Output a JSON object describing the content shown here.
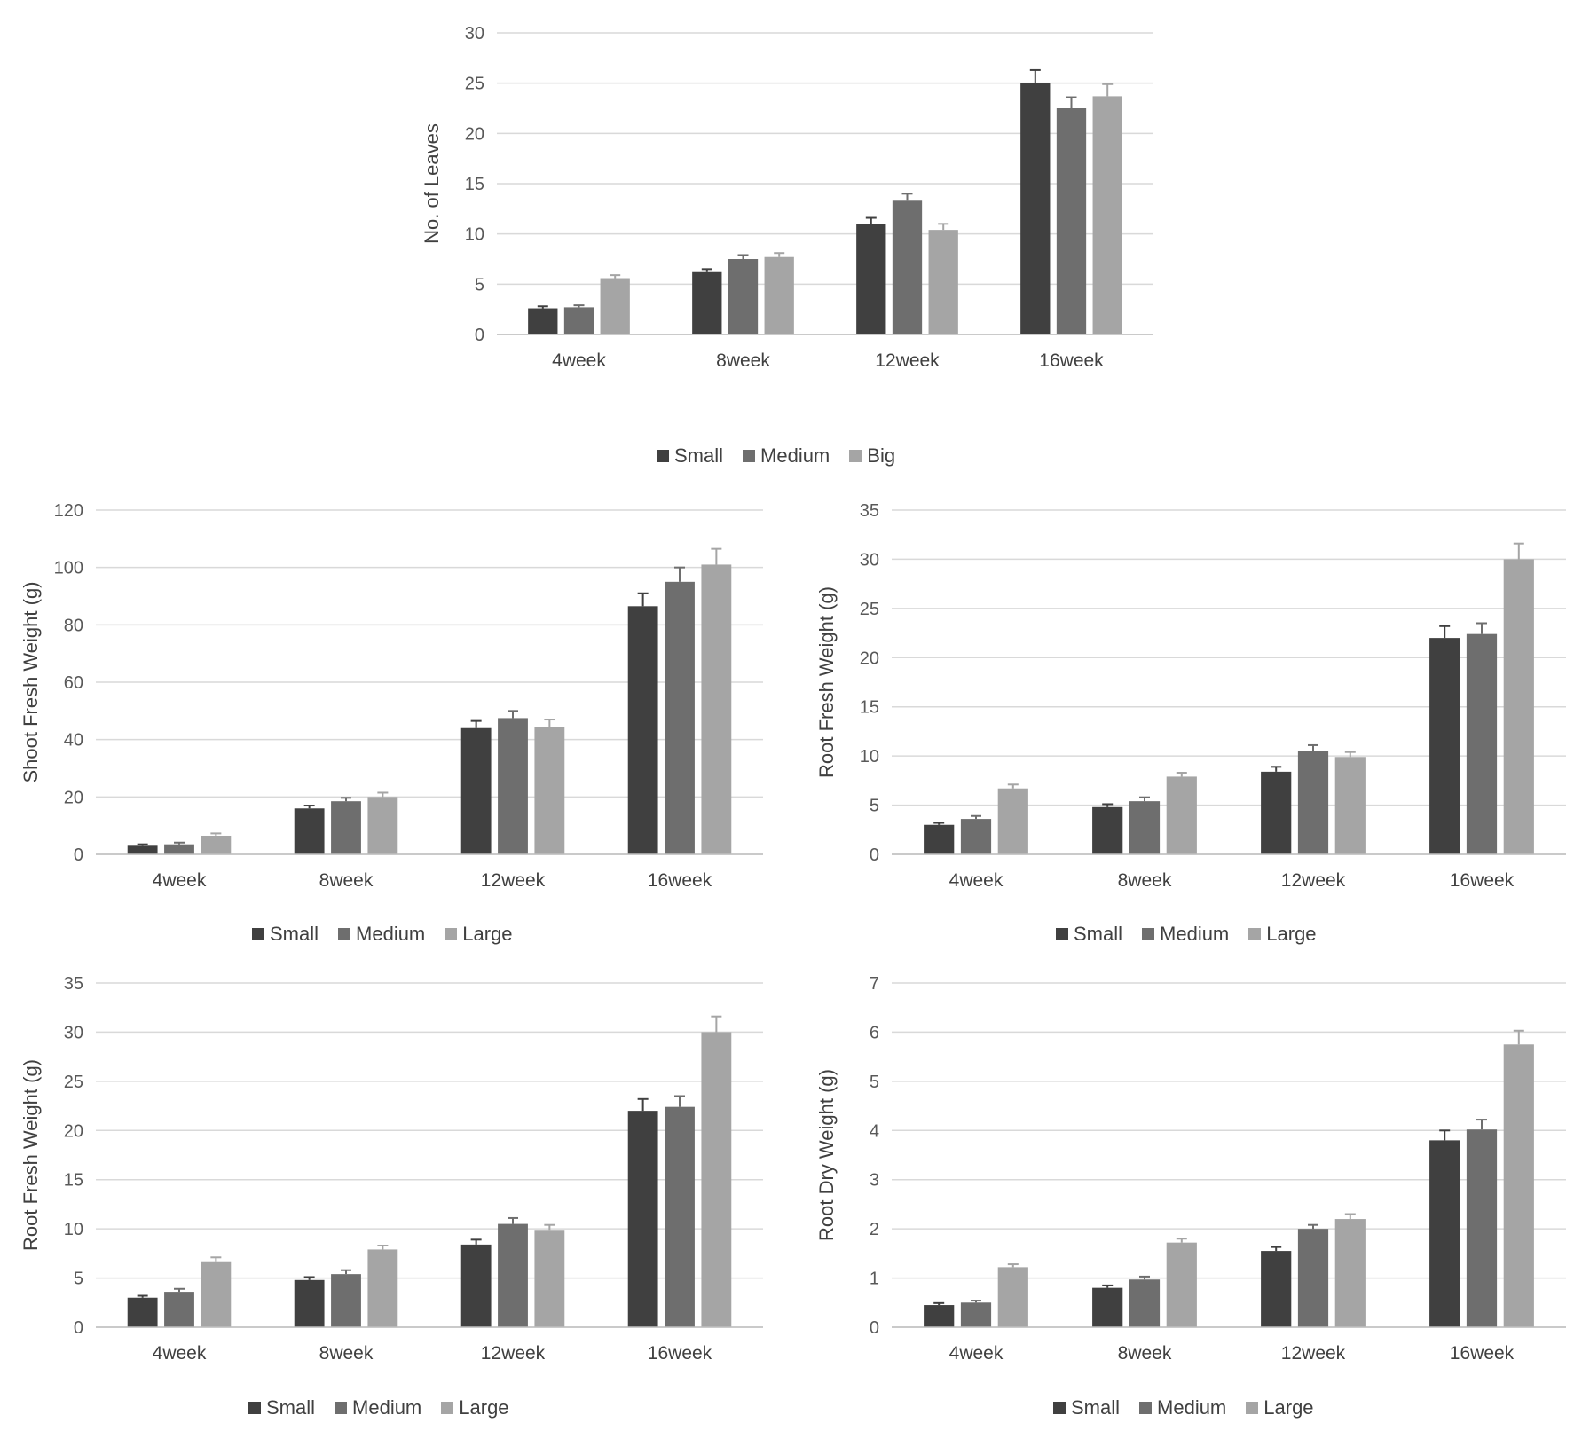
{
  "chart_data": [
    {
      "type": "bar",
      "categories": [
        "4week",
        "8week",
        "12week",
        "16week"
      ],
      "ylabel": "No. of Leaves",
      "ylim": [
        0,
        30
      ],
      "yticks": [
        0,
        5,
        10,
        15,
        20,
        25,
        30
      ],
      "grid": true,
      "legend_position": "bottom",
      "series": [
        {
          "name": "Small",
          "color": "#404040",
          "values": [
            2.6,
            6.2,
            11.0,
            25.0
          ],
          "errors": [
            0.2,
            0.3,
            0.6,
            1.3
          ]
        },
        {
          "name": "Medium",
          "color": "#6e6e6e",
          "values": [
            2.7,
            7.5,
            13.3,
            22.5
          ],
          "errors": [
            0.2,
            0.4,
            0.7,
            1.1
          ]
        },
        {
          "name": "Big",
          "color": "#a5a5a5",
          "values": [
            5.6,
            7.7,
            10.4,
            23.7
          ],
          "errors": [
            0.3,
            0.4,
            0.6,
            1.2
          ]
        }
      ]
    },
    {
      "type": "bar",
      "categories": [
        "4week",
        "8week",
        "12week",
        "16week"
      ],
      "ylabel": "Shoot Fresh Weight (g)",
      "ylim": [
        0,
        120
      ],
      "yticks": [
        0,
        20,
        40,
        60,
        80,
        100,
        120
      ],
      "grid": true,
      "legend_position": "bottom",
      "series": [
        {
          "name": "Small",
          "color": "#404040",
          "values": [
            3.0,
            16.0,
            44.0,
            86.5
          ],
          "errors": [
            0.5,
            1.0,
            2.5,
            4.5
          ]
        },
        {
          "name": "Medium",
          "color": "#6e6e6e",
          "values": [
            3.5,
            18.5,
            47.5,
            95.0
          ],
          "errors": [
            0.6,
            1.2,
            2.5,
            5.0
          ]
        },
        {
          "name": "Large",
          "color": "#a5a5a5",
          "values": [
            6.5,
            20.0,
            44.5,
            101.0
          ],
          "errors": [
            0.8,
            1.5,
            2.5,
            5.5
          ]
        }
      ]
    },
    {
      "type": "bar",
      "categories": [
        "4week",
        "8week",
        "12week",
        "16week"
      ],
      "ylabel": "Root Fresh Weight (g)",
      "ylim": [
        0,
        35
      ],
      "yticks": [
        0,
        5,
        10,
        15,
        20,
        25,
        30,
        35
      ],
      "grid": true,
      "legend_position": "bottom",
      "series": [
        {
          "name": "Small",
          "color": "#404040",
          "values": [
            3.0,
            4.8,
            8.4,
            22.0
          ],
          "errors": [
            0.2,
            0.3,
            0.5,
            1.2
          ]
        },
        {
          "name": "Medium",
          "color": "#6e6e6e",
          "values": [
            3.6,
            5.4,
            10.5,
            22.4
          ],
          "errors": [
            0.3,
            0.4,
            0.6,
            1.1
          ]
        },
        {
          "name": "Large",
          "color": "#a5a5a5",
          "values": [
            6.7,
            7.9,
            9.9,
            30.0
          ],
          "errors": [
            0.4,
            0.4,
            0.5,
            1.6
          ]
        }
      ]
    },
    {
      "type": "bar",
      "categories": [
        "4week",
        "8week",
        "12week",
        "16week"
      ],
      "ylabel": "Root Fresh Weight (g)",
      "ylim": [
        0,
        35
      ],
      "yticks": [
        0,
        5,
        10,
        15,
        20,
        25,
        30,
        35
      ],
      "grid": true,
      "legend_position": "bottom",
      "series": [
        {
          "name": "Small",
          "color": "#404040",
          "values": [
            3.0,
            4.8,
            8.4,
            22.0
          ],
          "errors": [
            0.2,
            0.3,
            0.5,
            1.2
          ]
        },
        {
          "name": "Medium",
          "color": "#6e6e6e",
          "values": [
            3.6,
            5.4,
            10.5,
            22.4
          ],
          "errors": [
            0.3,
            0.4,
            0.6,
            1.1
          ]
        },
        {
          "name": "Large",
          "color": "#a5a5a5",
          "values": [
            6.7,
            7.9,
            9.9,
            30.0
          ],
          "errors": [
            0.4,
            0.4,
            0.5,
            1.6
          ]
        }
      ]
    },
    {
      "type": "bar",
      "categories": [
        "4week",
        "8week",
        "12week",
        "16week"
      ],
      "ylabel": "Root Dry Weight (g)",
      "ylim": [
        0,
        7
      ],
      "yticks": [
        0,
        1,
        2,
        3,
        4,
        5,
        6,
        7
      ],
      "grid": true,
      "legend_position": "bottom",
      "series": [
        {
          "name": "Small",
          "color": "#404040",
          "values": [
            0.45,
            0.8,
            1.55,
            3.8
          ],
          "errors": [
            0.04,
            0.05,
            0.08,
            0.2
          ]
        },
        {
          "name": "Medium",
          "color": "#6e6e6e",
          "values": [
            0.5,
            0.97,
            2.0,
            4.02
          ],
          "errors": [
            0.04,
            0.06,
            0.08,
            0.2
          ]
        },
        {
          "name": "Large",
          "color": "#a5a5a5",
          "values": [
            1.22,
            1.72,
            2.2,
            5.75
          ],
          "errors": [
            0.06,
            0.08,
            0.1,
            0.28
          ]
        }
      ]
    }
  ]
}
